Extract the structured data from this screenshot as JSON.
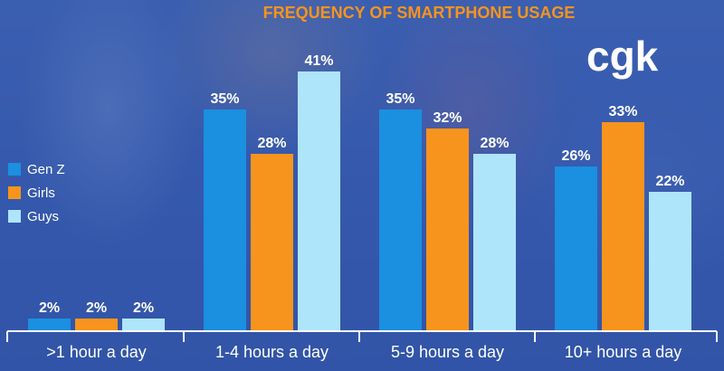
{
  "chart_data": {
    "type": "bar",
    "title": "FREQUENCY OF SMARTPHONE USAGE",
    "xlabel": "",
    "ylabel": "",
    "ylim": [
      0,
      45
    ],
    "categories": [
      ">1 hour a day",
      "1-4 hours a day",
      "5-9 hours a day",
      "10+ hours a day"
    ],
    "series": [
      {
        "name": "Gen Z",
        "values": [
          2,
          35,
          35,
          26
        ],
        "labels": [
          "2%",
          "35%",
          "35%",
          "26%"
        ],
        "color": "#1b8fe0"
      },
      {
        "name": "Girls",
        "values": [
          2,
          28,
          32,
          33
        ],
        "labels": [
          "2%",
          "28%",
          "32%",
          "33%"
        ],
        "color": "#f7941d"
      },
      {
        "name": "Guys",
        "values": [
          2,
          41,
          28,
          22
        ],
        "labels": [
          "2%",
          "41%",
          "28%",
          "22%"
        ],
        "color": "#aee5fb"
      }
    ],
    "legend_position": "left",
    "grid": false
  },
  "logo_text": "cgk",
  "colors": {
    "title": "#f7941d",
    "text": "#ffffff",
    "logo_accent": "#1b8fe0"
  }
}
